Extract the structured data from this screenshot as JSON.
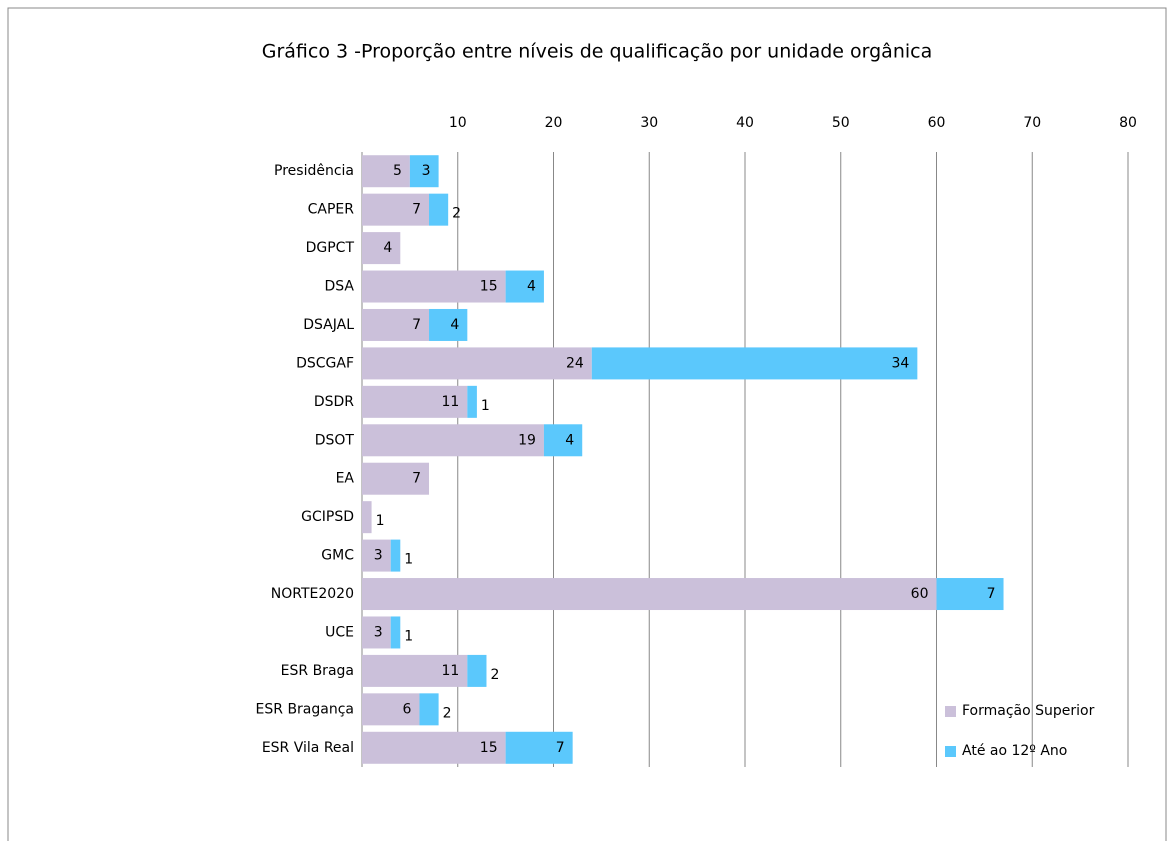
{
  "chart_data": {
    "type": "stacked-barh",
    "title": "Gráfico 3 -Proporção entre níveis de qualificação por unidade orgânica",
    "categories": [
      "Presidência",
      "CAPER",
      "DGPCT",
      "DSA",
      "DSAJAL",
      "DSCGAF",
      "DSDR",
      "DSOT",
      "EA",
      "GCIPSD",
      "GMC",
      "NORTE2020",
      "UCE",
      "ESR Braga",
      "ESR Bragança",
      "ESR Vila Real"
    ],
    "series": [
      {
        "name": "Formação Superior",
        "color": "#cbc0da",
        "values": [
          5,
          7,
          4,
          15,
          7,
          24,
          11,
          19,
          7,
          1,
          3,
          60,
          3,
          11,
          6,
          15
        ]
      },
      {
        "name": "Até ao 12º Ano",
        "color": "#5bc8fc",
        "values": [
          3,
          2,
          null,
          4,
          4,
          34,
          1,
          4,
          null,
          null,
          1,
          7,
          1,
          2,
          2,
          7
        ]
      }
    ],
    "xlim": [
      0,
      80
    ],
    "xticks": [
      10,
      20,
      30,
      40,
      50,
      60,
      70,
      80
    ],
    "grid": true,
    "legend": "bottom-right"
  }
}
